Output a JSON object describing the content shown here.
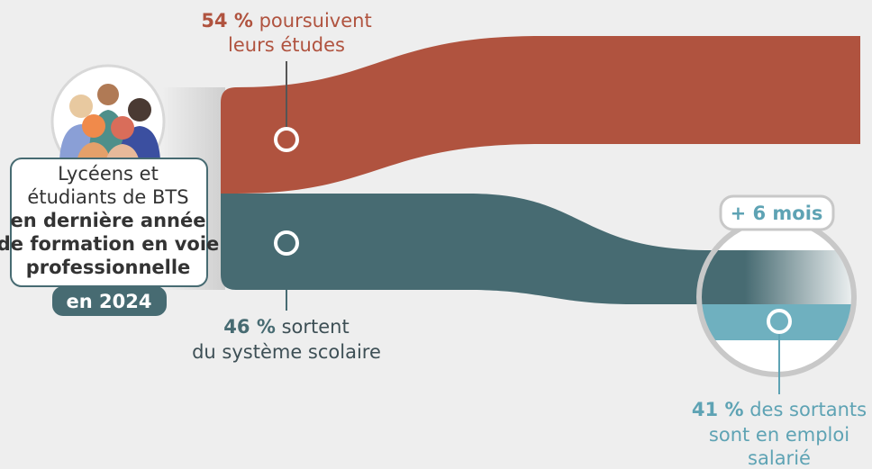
{
  "population": {
    "regular": [
      "Lycéens et",
      "étudiants de BTS"
    ],
    "bold": [
      "en dernière année",
      "de formation en voie",
      "professionnelle"
    ],
    "year": "en 2024"
  },
  "flows": [
    {
      "percent": "54 %",
      "lines": [
        "poursuivent",
        "leurs études"
      ]
    },
    {
      "percent": "46 %",
      "lines": [
        "sortent",
        "du système scolaire"
      ]
    },
    {
      "percent": "41 %",
      "lines": [
        "des sortants",
        "sont en emploi",
        "salarié"
      ]
    }
  ],
  "badge": "+ 6 mois"
}
